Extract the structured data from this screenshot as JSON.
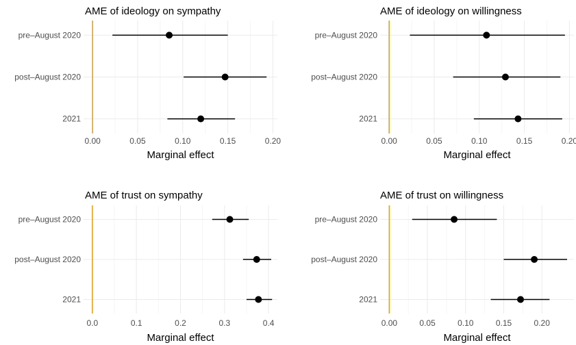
{
  "colors": {
    "zero_line": "#e8a317",
    "grid_major": "#ebebeb",
    "grid_minor": "#f5f5f5",
    "point": "#000000"
  },
  "chart_data": [
    {
      "type": "scatter",
      "title": "AME of ideology on sympathy",
      "xlabel": "Marginal effect",
      "categories": [
        "pre–August 2020",
        "post–August 2020",
        "2021"
      ],
      "xlim": [
        -0.01,
        0.205
      ],
      "x_ticks": [
        0.0,
        0.05,
        0.1,
        0.15,
        0.2
      ],
      "x_tick_labels": [
        "0.00",
        "0.05",
        "0.10",
        "0.15",
        "0.20"
      ],
      "estimates": [
        0.085,
        0.147,
        0.12
      ],
      "lower": [
        0.022,
        0.101,
        0.083
      ],
      "upper": [
        0.15,
        0.193,
        0.158
      ],
      "reference_line": 0
    },
    {
      "type": "scatter",
      "title": "AME of ideology on willingness",
      "xlabel": "Marginal effect",
      "categories": [
        "pre–August 2020",
        "post–August 2020",
        "2021"
      ],
      "xlim": [
        -0.01,
        0.205
      ],
      "x_ticks": [
        0.0,
        0.05,
        0.1,
        0.15,
        0.2
      ],
      "x_tick_labels": [
        "0.00",
        "0.05",
        "0.10",
        "0.15",
        "0.20"
      ],
      "estimates": [
        0.108,
        0.129,
        0.143
      ],
      "lower": [
        0.023,
        0.071,
        0.094
      ],
      "upper": [
        0.195,
        0.19,
        0.192
      ],
      "reference_line": 0
    },
    {
      "type": "scatter",
      "title": "AME of trust on sympathy",
      "xlabel": "Marginal effect",
      "categories": [
        "pre–August 2020",
        "post–August 2020",
        "2021"
      ],
      "xlim": [
        -0.02,
        0.42
      ],
      "x_ticks": [
        0.0,
        0.1,
        0.2,
        0.3,
        0.4
      ],
      "x_tick_labels": [
        "0.0",
        "0.1",
        "0.2",
        "0.3",
        "0.4"
      ],
      "estimates": [
        0.312,
        0.373,
        0.377
      ],
      "lower": [
        0.272,
        0.342,
        0.35
      ],
      "upper": [
        0.355,
        0.406,
        0.408
      ],
      "reference_line": 0
    },
    {
      "type": "scatter",
      "title": "AME of trust on willingness",
      "xlabel": "Marginal effect",
      "categories": [
        "pre–August 2020",
        "post–August 2020",
        "2021"
      ],
      "xlim": [
        -0.012,
        0.242
      ],
      "x_ticks": [
        0.0,
        0.05,
        0.1,
        0.15,
        0.2
      ],
      "x_tick_labels": [
        "0.00",
        "0.05",
        "0.10",
        "0.15",
        "0.20"
      ],
      "estimates": [
        0.085,
        0.19,
        0.172
      ],
      "lower": [
        0.03,
        0.15,
        0.133
      ],
      "upper": [
        0.141,
        0.233,
        0.21
      ],
      "reference_line": 0
    }
  ]
}
